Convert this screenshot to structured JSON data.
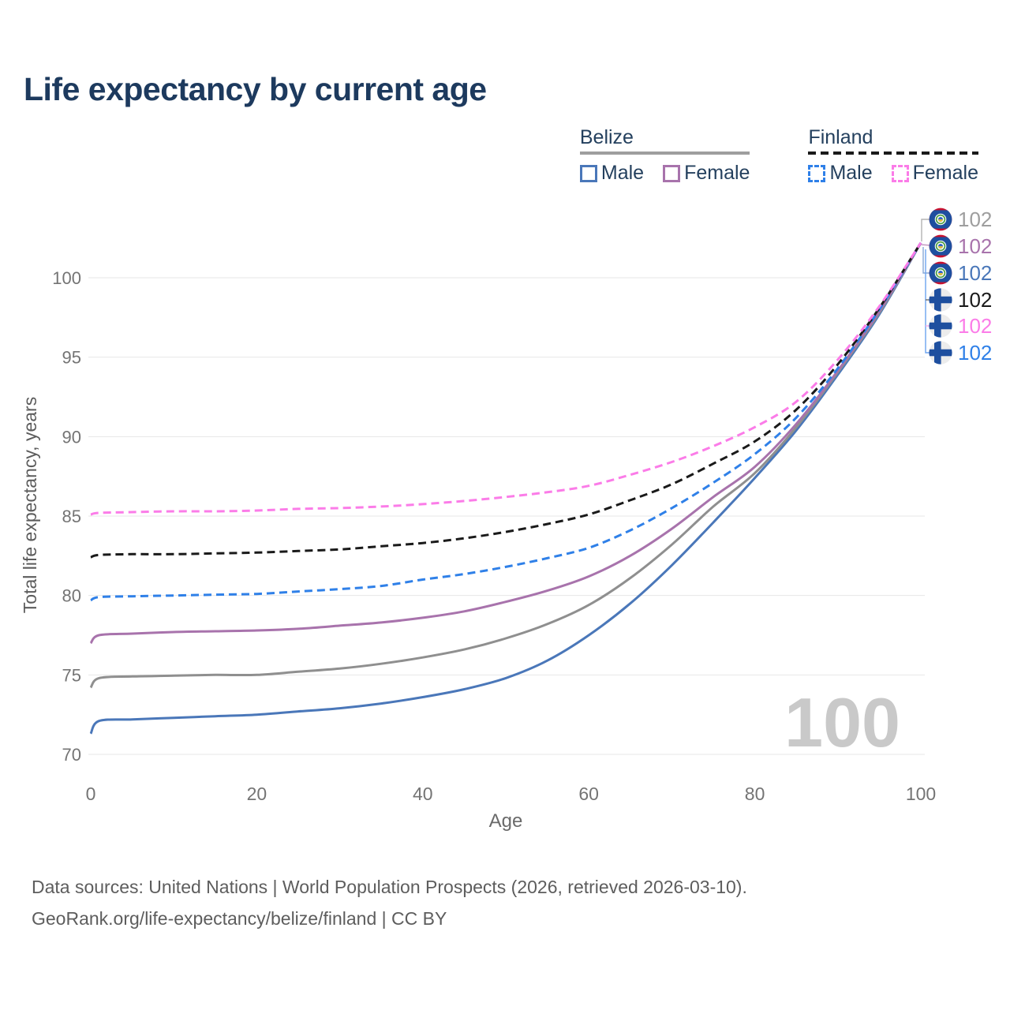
{
  "title": "Life expectancy by current age",
  "legend": {
    "groups": [
      {
        "country": "Belize",
        "line_style": "solid",
        "underline_color": "#9e9e9e",
        "items": [
          {
            "label": "Male",
            "color": "#4a77b9"
          },
          {
            "label": "Female",
            "color": "#a873ac"
          }
        ]
      },
      {
        "country": "Finland",
        "line_style": "dashed",
        "underline_color": "#1a1a1a",
        "items": [
          {
            "label": "Male",
            "color": "#2f80e8"
          },
          {
            "label": "Female",
            "color": "#fb7ce8"
          }
        ]
      }
    ]
  },
  "watermark": "100",
  "footer": {
    "line1": "Data sources: United Nations | World Population Prospects (2026, retrieved 2026-03-10).",
    "line2": "GeoRank.org/life-expectancy/belize/finland | CC BY"
  },
  "chart_data": {
    "type": "line",
    "title": "Life expectancy by current age",
    "xlabel": "Age",
    "ylabel": "Total life expectancy, years",
    "xlim": [
      0,
      100
    ],
    "ylim": [
      70,
      103
    ],
    "x_ticks": [
      0,
      20,
      40,
      60,
      80,
      100
    ],
    "y_ticks": [
      70,
      75,
      80,
      85,
      90,
      95,
      100
    ],
    "grid": "horizontal",
    "legend_position": "top-right",
    "x": [
      0,
      1,
      5,
      10,
      15,
      20,
      25,
      30,
      35,
      40,
      45,
      50,
      55,
      60,
      65,
      70,
      75,
      80,
      85,
      90,
      95,
      100
    ],
    "series": [
      {
        "name": "Belize Male",
        "country": "Belize",
        "sex": "Male",
        "color": "#4a77b9",
        "dash": "solid",
        "end_label": "102",
        "values": [
          71.3,
          72.1,
          72.2,
          72.3,
          72.4,
          72.5,
          72.7,
          72.9,
          73.2,
          73.6,
          74.1,
          74.8,
          75.9,
          77.5,
          79.5,
          81.9,
          84.6,
          87.4,
          90.4,
          93.9,
          97.7,
          102.2
        ]
      },
      {
        "name": "Belize Both sexes",
        "country": "Belize",
        "sex": "Both",
        "color": "#8f8f8f",
        "dash": "solid",
        "end_label": "102",
        "values": [
          74.2,
          74.8,
          74.9,
          74.95,
          75.0,
          75.0,
          75.2,
          75.4,
          75.7,
          76.1,
          76.6,
          77.3,
          78.2,
          79.4,
          81.1,
          83.2,
          85.6,
          87.7,
          90.6,
          94.05,
          97.8,
          102.2
        ]
      },
      {
        "name": "Belize Female",
        "country": "Belize",
        "sex": "Female",
        "color": "#a873ac",
        "dash": "solid",
        "end_label": "102",
        "values": [
          77.0,
          77.5,
          77.6,
          77.7,
          77.75,
          77.8,
          77.9,
          78.1,
          78.3,
          78.6,
          79.0,
          79.6,
          80.3,
          81.2,
          82.5,
          84.2,
          86.2,
          88.1,
          90.8,
          94.15,
          97.9,
          102.2
        ]
      },
      {
        "name": "Finland Male",
        "country": "Finland",
        "sex": "Male",
        "color": "#2f80e8",
        "dash": "dashed",
        "end_label": "102",
        "values": [
          79.7,
          79.9,
          79.95,
          80.0,
          80.05,
          80.1,
          80.25,
          80.4,
          80.6,
          81.0,
          81.35,
          81.8,
          82.35,
          83.0,
          84.1,
          85.5,
          87.1,
          88.9,
          91.2,
          94.3,
          98.0,
          102.2
        ]
      },
      {
        "name": "Finland Both sexes",
        "country": "Finland",
        "sex": "Both",
        "color": "#1a1a1a",
        "dash": "dashed",
        "end_label": "102",
        "values": [
          82.4,
          82.55,
          82.6,
          82.6,
          82.65,
          82.7,
          82.8,
          82.9,
          83.1,
          83.3,
          83.6,
          84.0,
          84.5,
          85.1,
          86.0,
          87.0,
          88.3,
          89.7,
          91.7,
          94.55,
          98.1,
          102.2
        ]
      },
      {
        "name": "Finland Female",
        "country": "Finland",
        "sex": "Female",
        "color": "#fb7ce8",
        "dash": "dashed",
        "end_label": "102",
        "values": [
          85.1,
          85.2,
          85.25,
          85.3,
          85.3,
          85.35,
          85.45,
          85.5,
          85.6,
          85.75,
          85.95,
          86.2,
          86.5,
          86.9,
          87.6,
          88.4,
          89.4,
          90.6,
          92.2,
          94.85,
          98.2,
          102.2
        ]
      }
    ],
    "end_annotations": [
      {
        "label": "102",
        "color": "#9e9e9e",
        "flag": "belize",
        "series": "Belize Both sexes"
      },
      {
        "label": "102",
        "color": "#a873ac",
        "flag": "belize",
        "series": "Belize Female"
      },
      {
        "label": "102",
        "color": "#4a77b9",
        "flag": "belize",
        "series": "Belize Male"
      },
      {
        "label": "102",
        "color": "#1a1a1a",
        "flag": "finland",
        "series": "Finland Both sexes"
      },
      {
        "label": "102",
        "color": "#fb7ce8",
        "flag": "finland",
        "series": "Finland Female"
      },
      {
        "label": "102",
        "color": "#2f80e8",
        "flag": "finland",
        "series": "Finland Male"
      }
    ],
    "watermark": "100"
  }
}
